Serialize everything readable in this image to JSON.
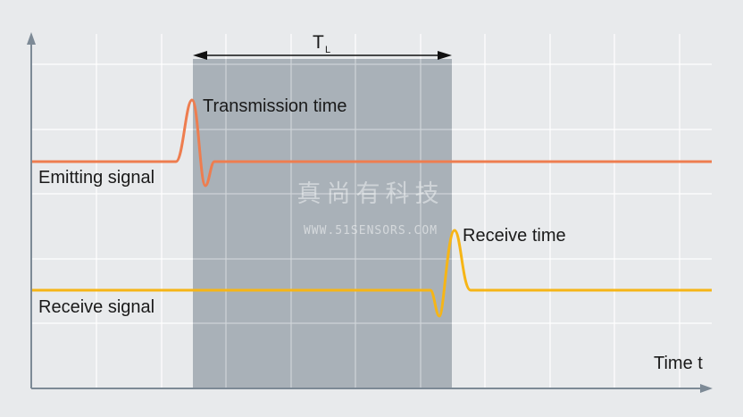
{
  "labels": {
    "tl_main": "T",
    "tl_sub": "L",
    "transmission_time": "Transmission time",
    "emitting_signal": "Emitting signal",
    "receive_time": "Receive time",
    "receive_signal": "Receive signal",
    "time_axis": "Time t"
  },
  "watermark": {
    "line1": "真尚有科技",
    "line2": "WWW.51SENSORS.COM"
  },
  "colors": {
    "background": "#e8eaec",
    "grid": "#ffffff",
    "shaded_interval": "#a9b1b8",
    "axis": "#7d8a96",
    "emitting_signal": "#ee7d4f",
    "receive_signal": "#f6b516"
  }
}
